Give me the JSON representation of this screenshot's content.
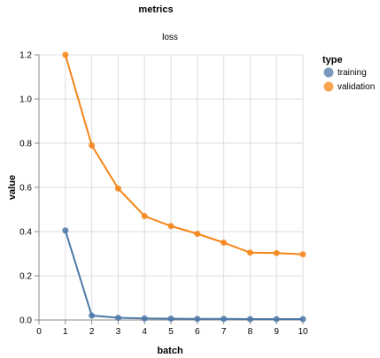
{
  "chart_data": {
    "type": "line",
    "title": "metrics",
    "subtitle": "loss",
    "xlabel": "batch",
    "ylabel": "value",
    "xlim": [
      0,
      10
    ],
    "ylim": [
      0,
      1.2
    ],
    "xticks": [
      "0",
      "1",
      "2",
      "3",
      "4",
      "5",
      "6",
      "7",
      "8",
      "9",
      "10"
    ],
    "yticks": [
      "0.0",
      "0.2",
      "0.4",
      "0.6",
      "0.8",
      "1.0",
      "1.2"
    ],
    "grid": true,
    "legend": {
      "title": "type",
      "placement": "right",
      "items": [
        "training",
        "validation"
      ]
    },
    "series": [
      {
        "name": "training",
        "color": "#4c78a8",
        "x": [
          1,
          2,
          3,
          4,
          5,
          6,
          7,
          8,
          9,
          10
        ],
        "values": [
          0.405,
          0.02,
          0.01,
          0.007,
          0.006,
          0.005,
          0.005,
          0.004,
          0.004,
          0.004
        ]
      },
      {
        "name": "validation",
        "color": "#f58518",
        "x": [
          1,
          2,
          3,
          4,
          5,
          6,
          7,
          8,
          9,
          10
        ],
        "values": [
          1.2,
          0.79,
          0.595,
          0.47,
          0.425,
          0.39,
          0.35,
          0.305,
          0.303,
          0.297
        ]
      }
    ]
  }
}
